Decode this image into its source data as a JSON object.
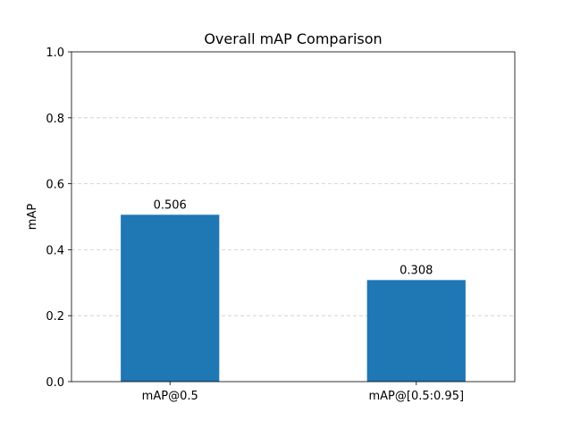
{
  "chart_data": {
    "type": "bar",
    "title": "Overall mAP Comparison",
    "xlabel": "",
    "ylabel": "mAP",
    "categories": [
      "mAP@0.5",
      "mAP@[0.5:0.95]"
    ],
    "values": [
      0.506,
      0.308
    ],
    "data_labels": [
      "0.506",
      "0.308"
    ],
    "ylim": [
      0,
      1.0
    ],
    "yticks": [
      0.0,
      0.2,
      0.4,
      0.6,
      0.8,
      1.0
    ],
    "ytick_labels": [
      "0.0",
      "0.2",
      "0.4",
      "0.6",
      "0.8",
      "1.0"
    ],
    "grid": {
      "y": true,
      "style": "dashed"
    },
    "colors": {
      "bar": "#1f77b4",
      "grid": "#cccccc",
      "axis": "#000000"
    }
  }
}
